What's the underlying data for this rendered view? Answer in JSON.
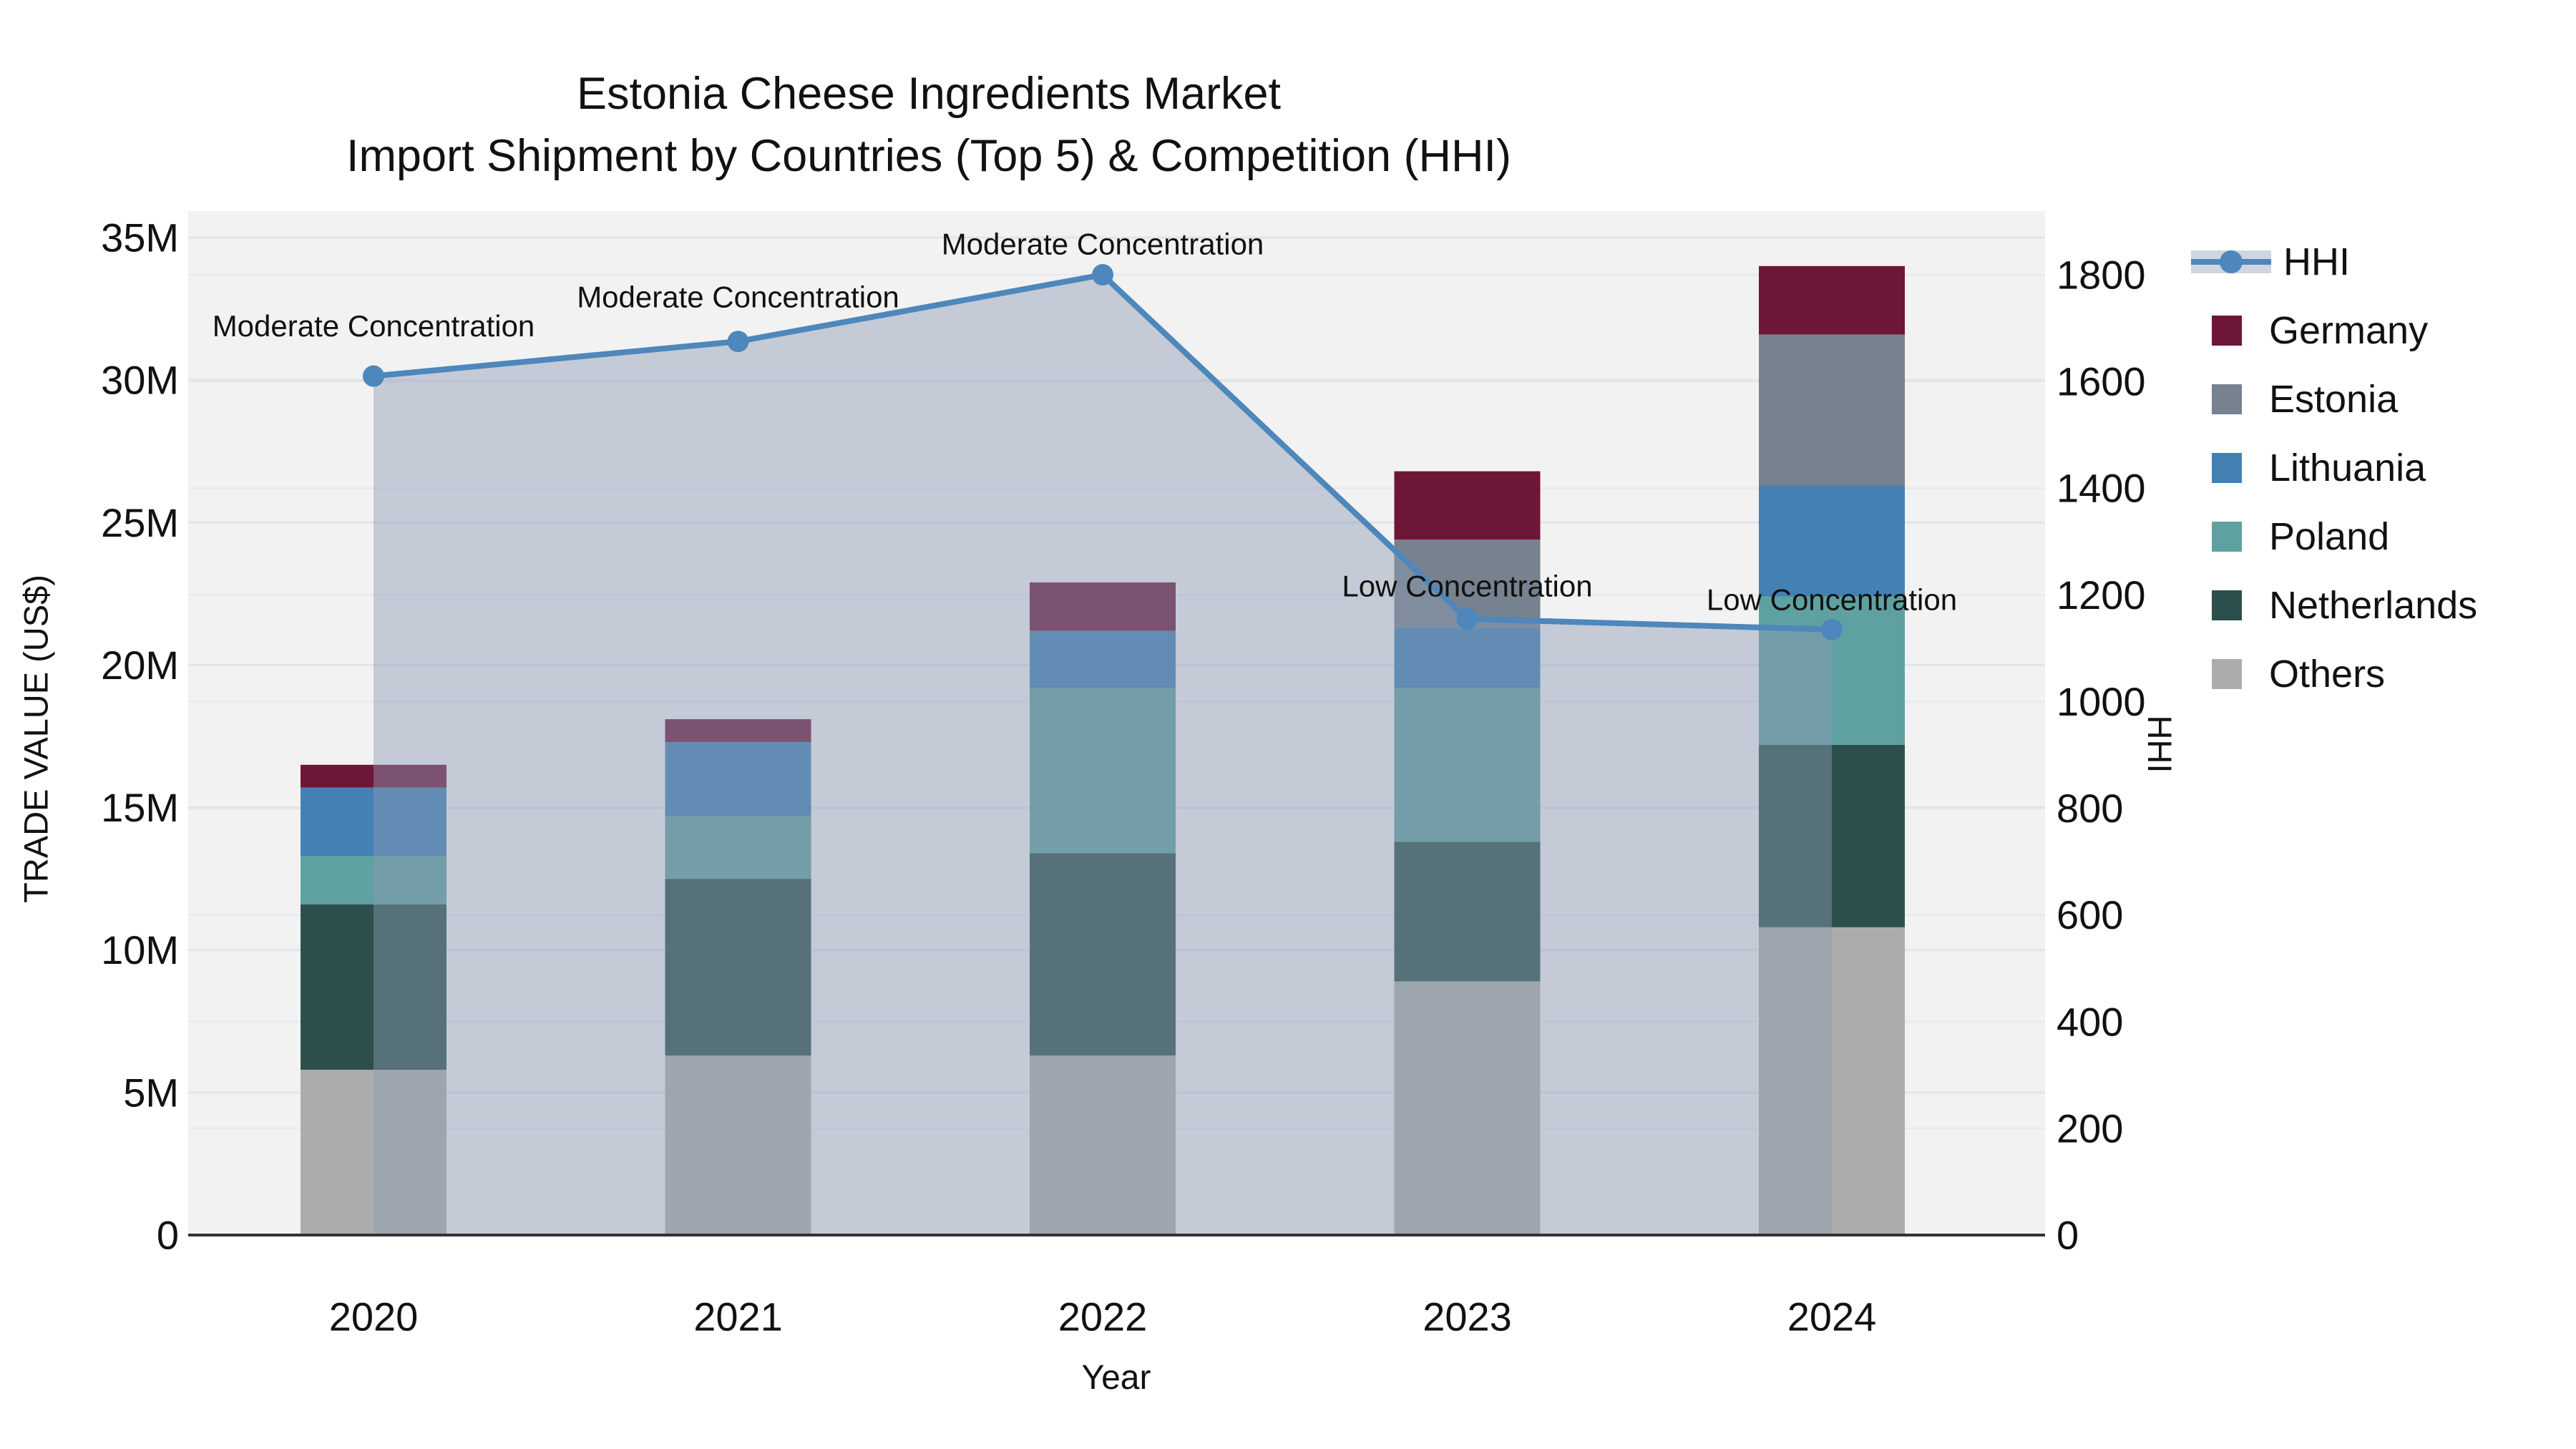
{
  "title": {
    "line1": "Estonia Cheese Ingredients Market",
    "line2": "Import Shipment by Countries (Top 5) & Competition (HHI)"
  },
  "axes": {
    "left": {
      "title": "TRADE VALUE (US$)",
      "ticks": [
        "0",
        "5M",
        "10M",
        "15M",
        "20M",
        "25M",
        "30M",
        "35M"
      ],
      "tick_values": [
        0,
        5,
        10,
        15,
        20,
        25,
        30,
        35
      ],
      "max": 35
    },
    "right": {
      "title": "HHI",
      "ticks": [
        "0",
        "200",
        "400",
        "600",
        "800",
        "1000",
        "1200",
        "1400",
        "1600",
        "1800"
      ],
      "tick_values": [
        0,
        200,
        400,
        600,
        800,
        1000,
        1200,
        1400,
        1600,
        1800
      ],
      "max": 1800
    },
    "x": {
      "title": "Year",
      "ticks": [
        "2020",
        "2021",
        "2022",
        "2023",
        "2024"
      ]
    }
  },
  "legend": {
    "line_item": "HHI",
    "items": [
      "Germany",
      "Estonia",
      "Lithuania",
      "Poland",
      "Netherlands",
      "Others"
    ]
  },
  "colors": {
    "Germany": "#6e1638",
    "Estonia": "#76828f",
    "Lithuania": "#4380b4",
    "Poland": "#5fa1a1",
    "Netherlands": "#2c4f4d",
    "Others": "#acadab",
    "hhi_line": "#4e87bb",
    "hhi_fill": "rgba(140,155,180,0.45)",
    "plot_bg": "#f2f2f2",
    "grid_major": "#e2e4e8",
    "grid_minor": "#e8eaed",
    "axis_line": "#333333",
    "text": "#111111"
  },
  "chart_data": {
    "type": "bar",
    "stacked": true,
    "categories": [
      "2020",
      "2021",
      "2022",
      "2023",
      "2024"
    ],
    "value_unit": "million US$",
    "series": [
      {
        "name": "Others",
        "values": [
          5.8,
          6.3,
          6.3,
          8.9,
          10.8
        ]
      },
      {
        "name": "Netherlands",
        "values": [
          5.8,
          6.2,
          7.1,
          4.9,
          6.4
        ]
      },
      {
        "name": "Poland",
        "values": [
          1.7,
          2.2,
          5.8,
          5.4,
          5.2
        ]
      },
      {
        "name": "Lithuania",
        "values": [
          2.4,
          2.6,
          2.0,
          2.1,
          3.9
        ]
      },
      {
        "name": "Estonia",
        "values": [
          0.0,
          0.0,
          0.0,
          3.1,
          5.3
        ]
      },
      {
        "name": "Germany",
        "values": [
          0.8,
          0.8,
          1.7,
          2.4,
          2.4
        ]
      }
    ],
    "line_series": {
      "name": "HHI",
      "axis": "right",
      "values": [
        1610,
        1675,
        1800,
        1155,
        1135
      ]
    },
    "annotations": [
      {
        "year": "2020",
        "text": "Moderate Concentration"
      },
      {
        "year": "2021",
        "text": "Moderate Concentration"
      },
      {
        "year": "2022",
        "text": "Moderate Concentration"
      },
      {
        "year": "2023",
        "text": "Low Concentration"
      },
      {
        "year": "2024",
        "text": "Low Concentration"
      }
    ],
    "title": "Estonia Cheese Ingredients Market — Import Shipment by Countries (Top 5) & Competition (HHI)",
    "xlabel": "Year",
    "ylabel": "TRADE VALUE (US$)",
    "y2label": "HHI",
    "ylim": [
      0,
      35000000
    ],
    "y2lim": [
      0,
      1800
    ],
    "grid": true,
    "legend_position": "right"
  }
}
